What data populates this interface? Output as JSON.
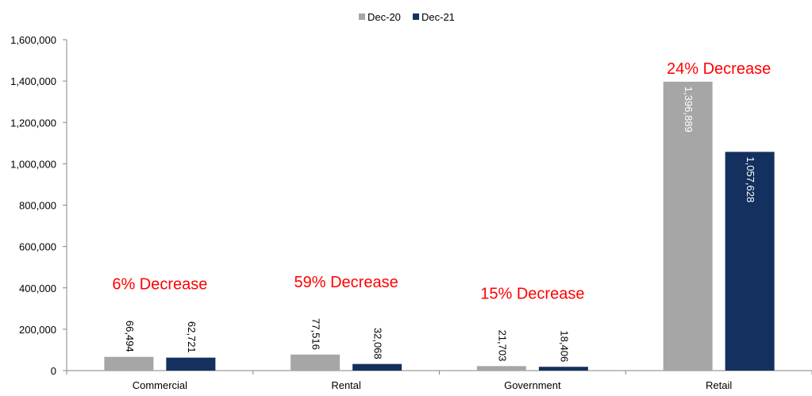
{
  "chart_data": {
    "type": "bar",
    "categories": [
      "Commercial",
      "Rental",
      "Government",
      "Retail"
    ],
    "series": [
      {
        "name": "Dec-20",
        "values": [
          66494,
          77516,
          21703,
          1396889
        ],
        "labels": [
          "66,494",
          "77,516",
          "21,703",
          "1,396,889"
        ],
        "color": "#a6a6a6"
      },
      {
        "name": "Dec-21",
        "values": [
          62721,
          32068,
          18406,
          1057628
        ],
        "labels": [
          "62,721",
          "32,068",
          "18,406",
          "1,057,628"
        ],
        "color": "#14305e"
      }
    ],
    "ylim": [
      0,
      1600000
    ],
    "yticks": [
      0,
      200000,
      400000,
      600000,
      800000,
      1000000,
      1200000,
      1400000,
      1600000
    ],
    "ytick_labels": [
      "0",
      "200,000",
      "400,000",
      "600,000",
      "800,000",
      "1,000,000",
      "1,200,000",
      "1,400,000",
      "1,600,000"
    ],
    "annotations": [
      "6% Decrease",
      "59% Decrease",
      "15% Decrease",
      "24% Decrease"
    ],
    "annotation_color": "#ff0000",
    "legend_position": "top-center",
    "grid": false,
    "title": "",
    "xlabel": "",
    "ylabel": ""
  }
}
